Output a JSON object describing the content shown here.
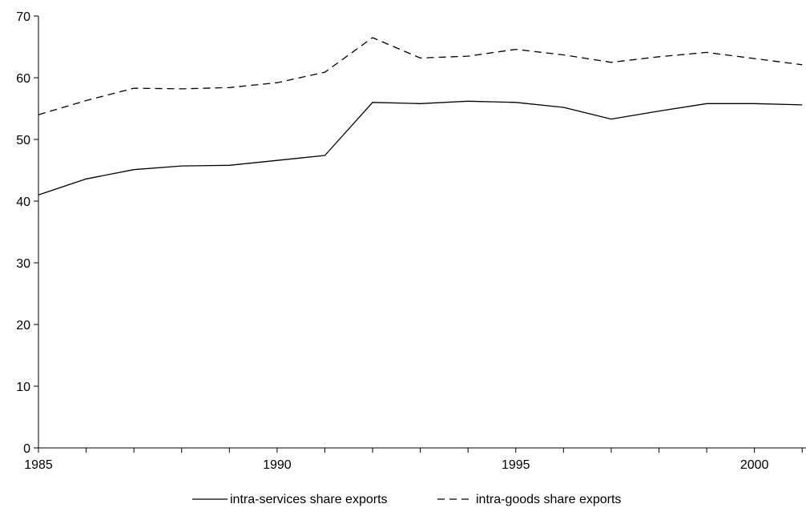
{
  "chart_data": {
    "type": "line",
    "x": [
      1985,
      1986,
      1987,
      1988,
      1989,
      1990,
      1991,
      1992,
      1993,
      1994,
      1995,
      1996,
      1997,
      1998,
      1999,
      2000,
      2001
    ],
    "series": [
      {
        "name": "intra-services share exports",
        "style": "solid",
        "values": [
          41.0,
          43.6,
          45.1,
          45.7,
          45.8,
          46.6,
          47.4,
          56.0,
          55.8,
          56.2,
          56.0,
          55.2,
          53.3,
          54.6,
          55.8,
          55.8,
          55.6
        ]
      },
      {
        "name": "intra-goods share exports",
        "style": "dashed",
        "values": [
          54.0,
          56.3,
          58.3,
          58.2,
          58.4,
          59.2,
          60.9,
          66.5,
          63.2,
          63.5,
          64.6,
          63.7,
          62.5,
          63.4,
          64.1,
          63.1,
          62.1
        ]
      }
    ],
    "title": "",
    "xlabel": "",
    "ylabel": "",
    "xlim": [
      1985,
      2001
    ],
    "ylim": [
      0,
      70
    ],
    "y_ticks": [
      "0",
      "10",
      "20",
      "30",
      "40",
      "50",
      "60",
      "70"
    ],
    "x_ticks": [
      "1985",
      "1990",
      "1995",
      "2000"
    ],
    "grid": false,
    "legend_position": "bottom-center",
    "line_color": "#000000"
  }
}
